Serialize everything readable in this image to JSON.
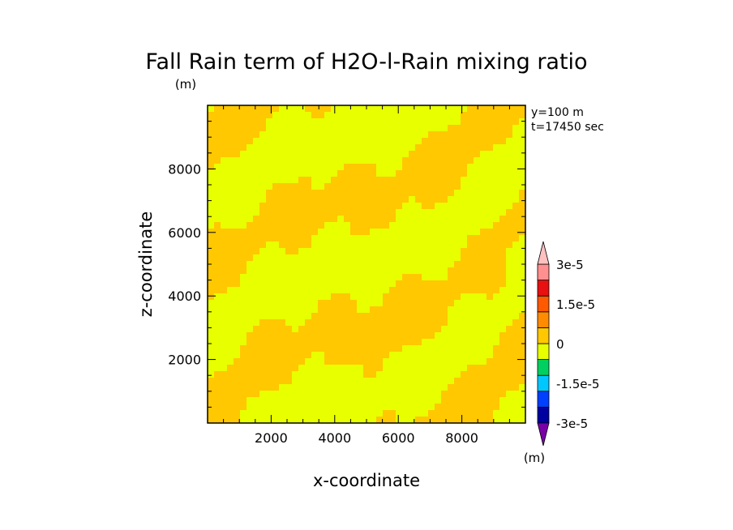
{
  "chart_data": {
    "type": "heatmap",
    "title": "Fall Rain term of H2O-l-Rain mixing ratio",
    "unit_top": "(m)",
    "unit_colorbar": "(m)",
    "annotations": [
      "y=100 m",
      "t=17450 sec"
    ],
    "xlabel": "x-coordinate",
    "ylabel": "z-coordinate",
    "xlim": [
      0,
      10000
    ],
    "ylim": [
      0,
      10000
    ],
    "xticks": [
      2000,
      4000,
      6000,
      8000
    ],
    "yticks": [
      2000,
      4000,
      6000,
      8000
    ],
    "xtick_labels": [
      "2000",
      "4000",
      "6000",
      "8000"
    ],
    "ytick_labels": [
      "2000",
      "4000",
      "6000",
      "8000"
    ],
    "colorbar": {
      "levels": [
        -3e-05,
        -2.25e-05,
        -1.5e-05,
        -7.5e-06,
        0,
        7.5e-06,
        1.5e-05,
        2.25e-05,
        3e-05
      ],
      "colors": [
        "#7a00a8",
        "#0000a0",
        "#0040ff",
        "#00c8ff",
        "#00d060",
        "#e8ff00",
        "#ffc800",
        "#ff8c00",
        "#ff5a00",
        "#e81010",
        "#ff9090",
        "#ffc0c0"
      ],
      "tick_labels": [
        "3e-5",
        "1.5e-5",
        "0",
        "-1.5e-5",
        "-3e-5"
      ]
    },
    "field_colors": {
      "low": "#e8ff00",
      "high": "#ffc800"
    }
  }
}
